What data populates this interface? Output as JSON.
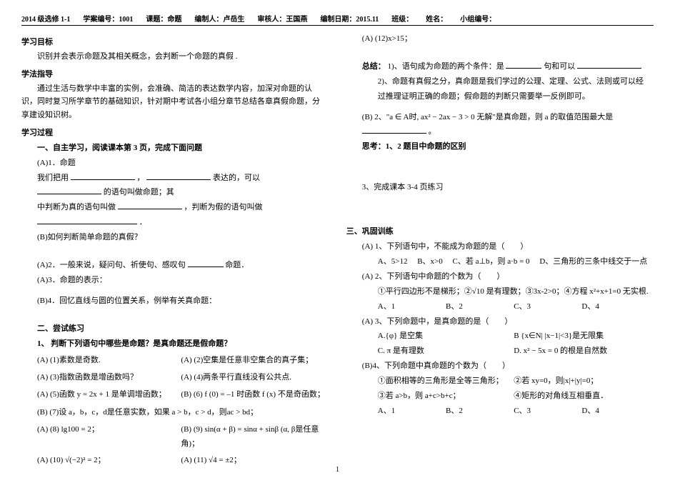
{
  "header": {
    "book": "2014 级选修 1-1",
    "lessonId": "学案编号：1001",
    "topic": "课题：命题",
    "author": "编制人：卢岳生",
    "reviewer": "审核人：王国燕",
    "date": "编制日期：2015.11",
    "class": "班级：",
    "name": "姓名：",
    "groupId": "小组编号："
  },
  "left": {
    "goalsTitle": "学习目标",
    "goalsText": "识别并会表示命题及其相关概念，会判断一个命题的真假 .",
    "methodTitle": "学法指导",
    "methodText": "通过生活与数学中丰富的实例，会准确、简洁的表达数学内容，加深对命题的认识，同时复习所学章节的基础知识，针对期中考试各小组分章节总结各章真假命题，分享建设知识树。",
    "processTitle": "学习过程",
    "sec1Title": "一、自主学习，阅读课本第 3 页，完成下面问题",
    "a1": "(A)1．命题",
    "a1Line1a": "我们把用",
    "a1Line1b": "，",
    "a1Line1c": "表达的，可以",
    "a1Line1d": "的语句叫做命题；其",
    "a1Line2a": "中判断为真的语句叫做",
    "a1Line2b": "，判断为假的语句叫做",
    "a1Line2c": "．",
    "b1": "(B)如何判断简单命题的真假？",
    "a2a": "(A)2．一般来说，疑问句、祈使句、感叹句",
    "a2b": "命题．",
    "a3": "(A)3．命题的表示：",
    "b4": "(B)4．回忆直线与圆的位置关系，例举有关真命题：",
    "sec2Title": "二、尝试练习",
    "q1": "1、 判断下列语句中哪些是命题？是真命题还是假命题？",
    "q1_1": "(A) (1)素数是奇数.",
    "q1_2": "(A) (2)空集是任意非空集合的真子集；",
    "q1_3": "(A) (3)指数函数是增函数吗？",
    "q1_4": "(A) (4)两条平行直线没有公共点.",
    "q1_5": "(A) (5)函数 y = 2x + 1 是单调增函数；",
    "q1_6": "(B) (6) f (0) = –1 时函数 f (x) 不是奇函数；",
    "q1_7": "(B) (7)设 a，b，c，d是任意实数，如果 a > b，c > d，则ac > bd；",
    "q1_8": "(A) (8) lg100 = 2；",
    "q1_9": "(B) (9) sin(α + β) = sinα + sinβ (α, β是任意角)；",
    "q1_10": "(A) (10) √(−2)² = 2；",
    "q1_11": "(A) (11) √4 = ±2；"
  },
  "right": {
    "q1_12": "(A) (12)x>15；",
    "summaryTitle": "总结：",
    "sum1a": "1)、语句成为命题的两个条件：是",
    "sum1b": "句和可以",
    "sum2": "2)、命题有真假之分，真命题是我们学过的公理、定理、公式、法则或可以经过推理证明正确的命题；假命题的判断只需要举一反例即可。",
    "b2a": "(B) 2、\"a ∈ A时, ax² − 2ax − 3 > 0 无解\"是真命题，则 a 的取值范围最大是",
    "b2b": "。",
    "thinkTitle": "思考：1、2 题目中命题的区别",
    "hw3": "3、完成课本 3-4 页练习",
    "sec3Title": "三、巩固训练",
    "tA1": "(A) 1、下列语句中，不能成为命题的是（　　）",
    "tA1_A": "A、5>12",
    "tA1_B": "B、x>0",
    "tA1_C": "C、若 a⊥b，则 a·b = 0",
    "tA1_D": "D、三角形的三条中线交于一点",
    "tA2": "(A) 2、下列语句中命题的个数为（　　）",
    "tA2_items": "①平行四边形不是梯形；②√10 是有理数；③3x-2>0；④方程 x²+x+1=0 无实根.",
    "tA2_A": "A、1",
    "tA2_B": "B、2",
    "tA2_C": "C、3",
    "tA2_D": "D、4",
    "tA3": "(A) 3、下列命题中，是真命题的是（　　）",
    "tA3_A": "A.{φ} 是空集",
    "tA3_B": "B {x∈N| |x−1|<3}是无限集",
    "tA3_C": "C. π 是有理数",
    "tA3_D": "D. x² − 5x = 0 的根是自然数",
    "tB4": "(B)4、下列命题中真命题的个数为（　　）",
    "tB4_1": "①面积相等的三角形是全等三角形；",
    "tB4_2": "②若 xy=0，则|x|+|y|=0；",
    "tB4_3": "③若 a>b，则 a+c>b+c；",
    "tB4_4": "④矩形的对角线互相垂直．",
    "tB4_A": "A、1",
    "tB4_B": "B、2",
    "tB4_C": "C、3",
    "tB4_D": "D、4"
  },
  "pageNum": "1"
}
